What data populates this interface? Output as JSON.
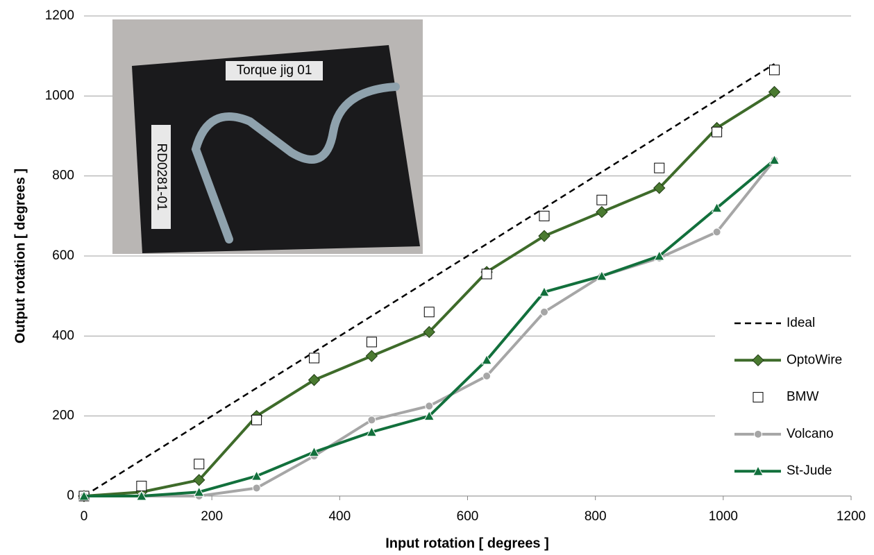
{
  "chart_data": {
    "type": "line",
    "x_label": "Input rotation [ degrees ]",
    "y_label": "Output rotation [ degrees ]",
    "annotations": [
      "Torque jig 01",
      "RD0281-01"
    ],
    "x": [
      0,
      90,
      180,
      270,
      360,
      450,
      540,
      630,
      720,
      810,
      900,
      990,
      1080
    ],
    "series": [
      {
        "name": "Ideal",
        "color": "#000000",
        "line": true,
        "dash": true,
        "marker": "none",
        "values": [
          0,
          90,
          180,
          270,
          360,
          450,
          540,
          630,
          720,
          810,
          900,
          990,
          1080
        ]
      },
      {
        "name": "OptoWire",
        "color": "#3e6b2a",
        "line": true,
        "dash": false,
        "marker": "diamond",
        "values": [
          0,
          10,
          40,
          200,
          290,
          350,
          410,
          560,
          650,
          710,
          770,
          920,
          1010
        ]
      },
      {
        "name": "BMW",
        "color": "#000000",
        "line": false,
        "dash": false,
        "marker": "square",
        "values": [
          0,
          25,
          80,
          190,
          345,
          385,
          460,
          555,
          700,
          740,
          820,
          910,
          1065
        ]
      },
      {
        "name": "Volcano",
        "color": "#a6a6a6",
        "line": true,
        "dash": false,
        "marker": "circle",
        "values": [
          0,
          0,
          0,
          20,
          100,
          190,
          225,
          300,
          460,
          550,
          595,
          660,
          840
        ]
      },
      {
        "name": "St-Jude",
        "color": "#12703c",
        "line": true,
        "dash": false,
        "marker": "triangle",
        "values": [
          0,
          0,
          10,
          50,
          110,
          160,
          200,
          340,
          510,
          550,
          600,
          720,
          840
        ]
      }
    ],
    "xlim": [
      0,
      1200
    ],
    "xticks": [
      0,
      200,
      400,
      600,
      800,
      1000,
      1200
    ],
    "ylim": [
      0,
      1200
    ],
    "yticks": [
      0,
      200,
      400,
      600,
      800,
      1000,
      1200
    ],
    "grid": true,
    "legend": "right"
  }
}
